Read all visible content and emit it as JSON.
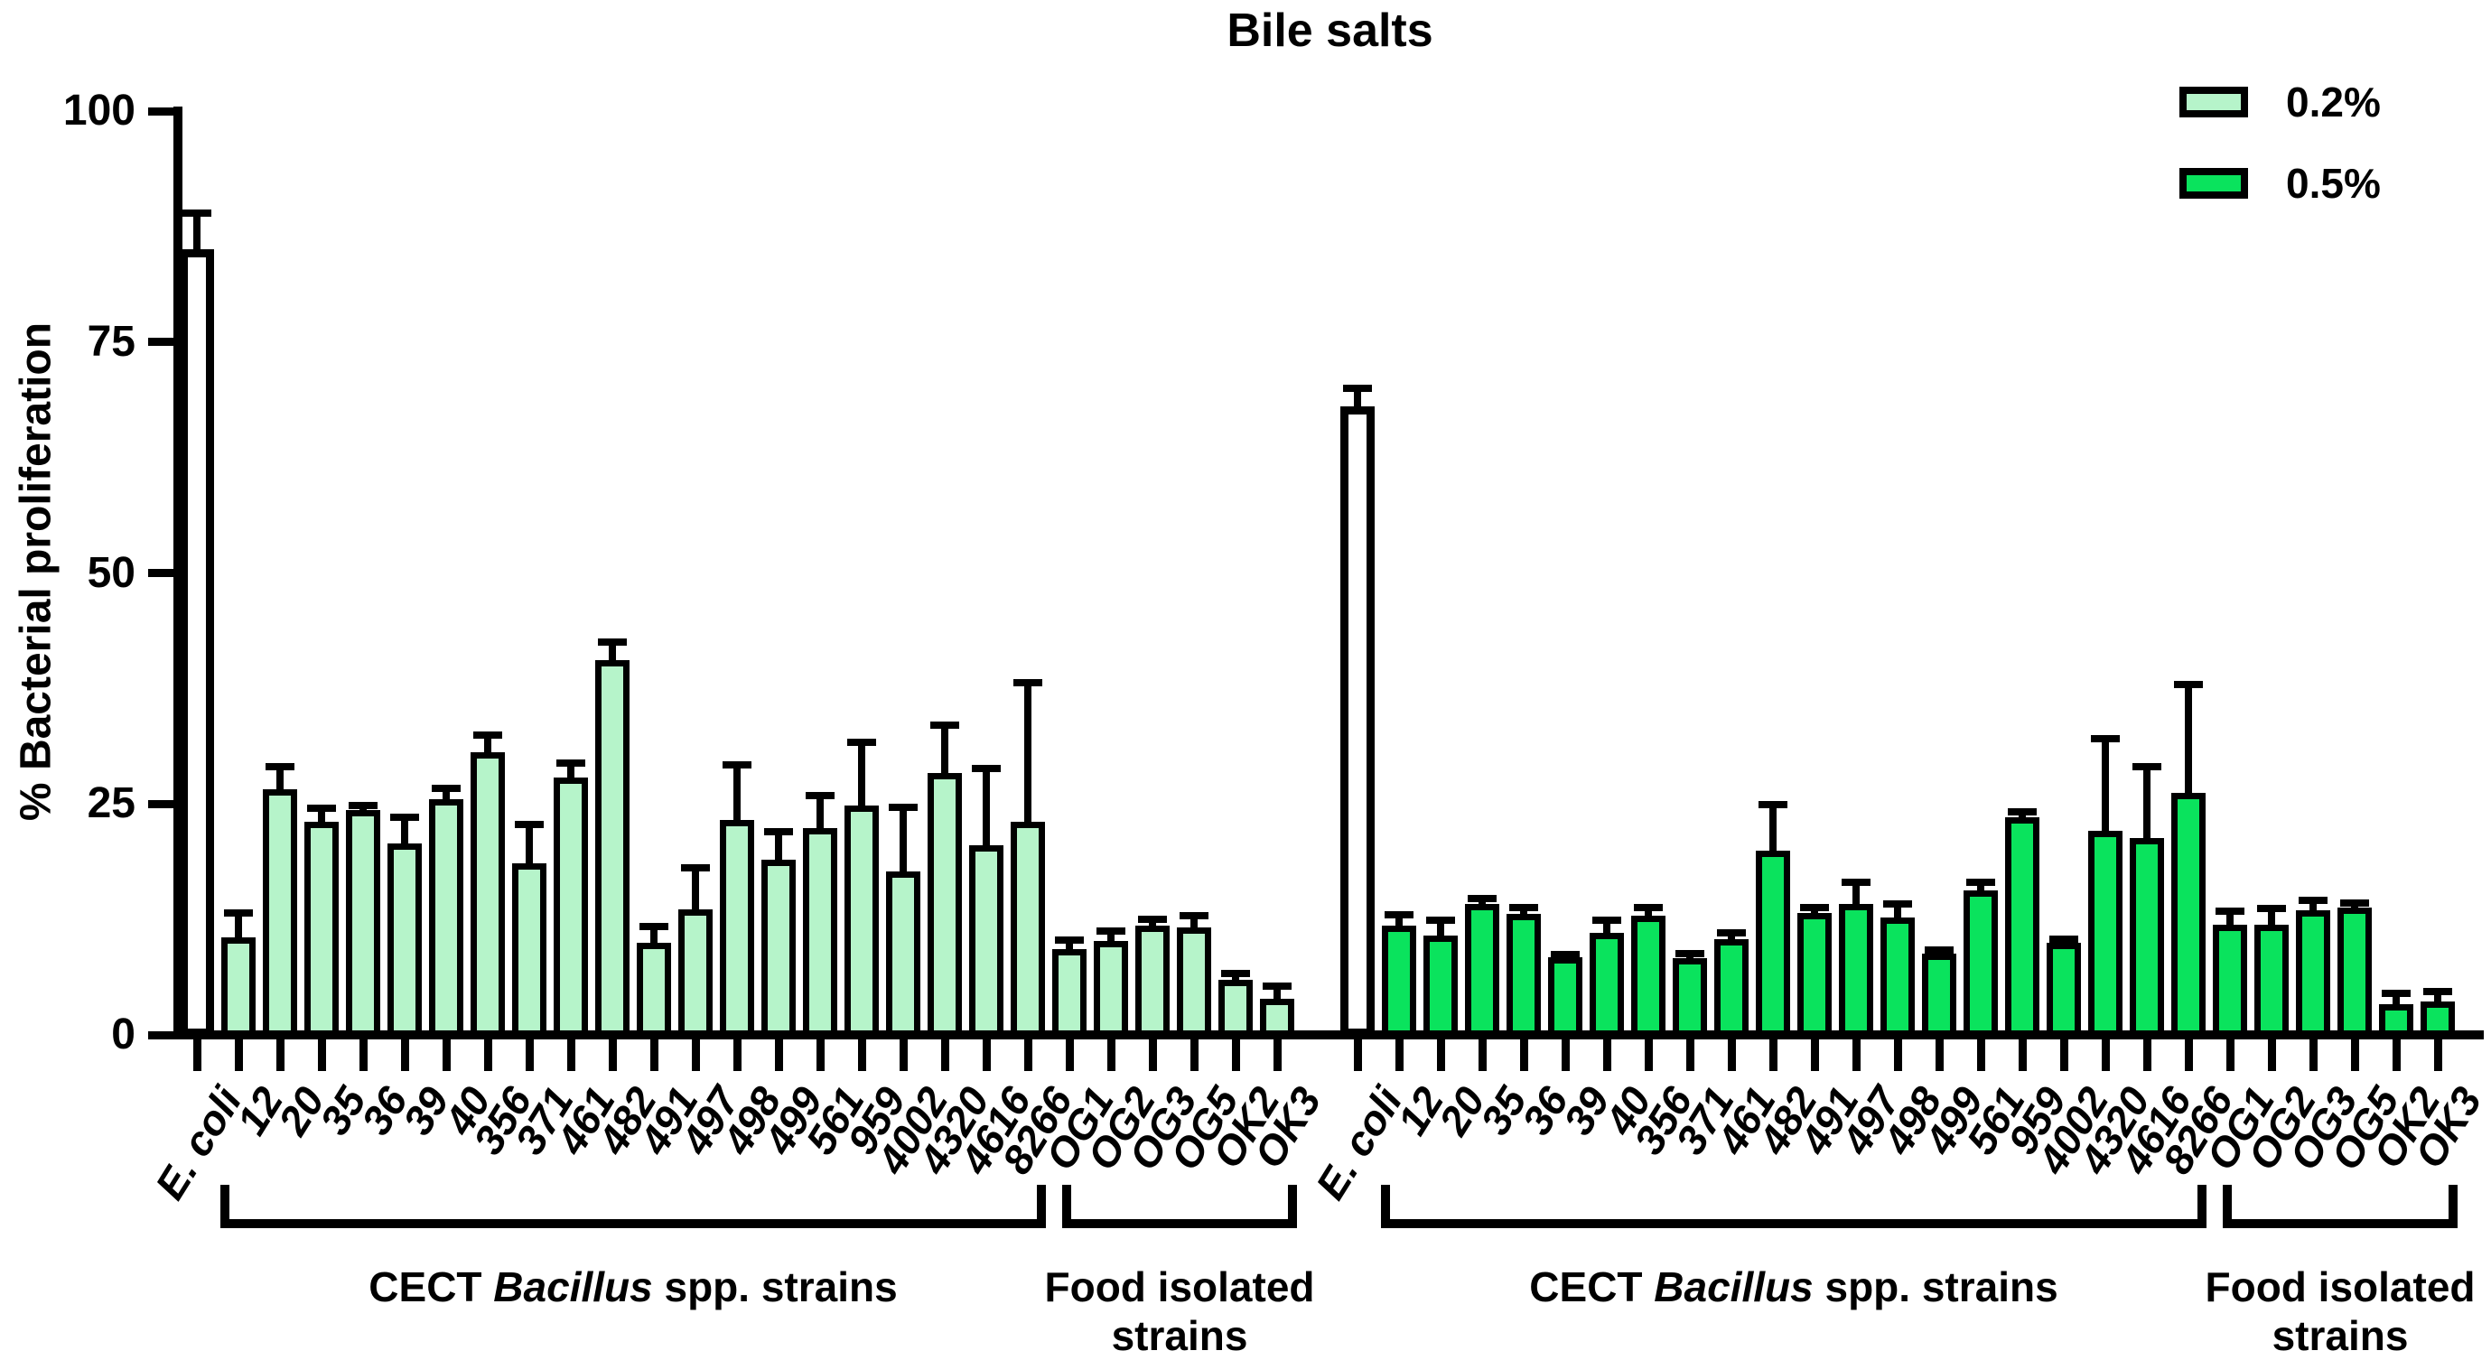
{
  "title": "Bile salts",
  "y_axis": {
    "label": "% Bacterial proliferation",
    "ticks": [
      100,
      75,
      50,
      25,
      0
    ]
  },
  "legend": [
    {
      "label": "0.2%",
      "color": "#b6f4ca"
    },
    {
      "label": "0.5%",
      "color": "#0ae35d"
    }
  ],
  "colors": {
    "light_green": "#b6f4ca",
    "bright_green": "#0ae35d",
    "bar_border": "#000000",
    "ecoli_fill": "#ffffff",
    "axis": "#000000"
  },
  "annotations": {
    "cect_prefix": "CECT ",
    "cect_italic": "Bacillus",
    "cect_suffix": " spp. strains",
    "food_line1": "Food isolated",
    "food_line2": "strains"
  },
  "chart_data": {
    "type": "bar",
    "title": "Bile salts",
    "ylabel": "% Bacterial proliferation",
    "ylim": [
      0,
      100
    ],
    "grid": false,
    "legend_position": "top-right",
    "categories": [
      "E. coli",
      "12",
      "20",
      "35",
      "36",
      "39",
      "40",
      "356",
      "371",
      "461",
      "482",
      "491",
      "497",
      "498",
      "499",
      "561",
      "959",
      "4002",
      "4320",
      "4616",
      "8266",
      "OG1",
      "OG2",
      "OG3",
      "OG5",
      "OK2",
      "OK3"
    ],
    "category_groups": {
      "cect_strains": [
        "12",
        "20",
        "35",
        "36",
        "39",
        "40",
        "356",
        "371",
        "461",
        "482",
        "491",
        "497",
        "498",
        "499",
        "561",
        "959",
        "4002",
        "4320",
        "4616",
        "8266"
      ],
      "food_isolated_strains": [
        "OG1",
        "OG2",
        "OG3",
        "OG5",
        "OK2",
        "OK3"
      ]
    },
    "control_bar_style": "E. coli drawn as white bar with thick black outline in both groups",
    "error_bars": "upper SD whiskers with caps",
    "series": [
      {
        "name": "0.2%",
        "color": "#b6f4ca",
        "values": [
          85.0,
          10.6,
          26.6,
          23.1,
          24.3,
          20.7,
          25.5,
          30.6,
          18.6,
          27.9,
          40.6,
          10.0,
          13.6,
          23.3,
          19.0,
          22.4,
          24.8,
          17.7,
          28.3,
          20.5,
          23.1,
          9.3,
          10.2,
          11.8,
          11.6,
          6.0,
          3.9
        ],
        "errors": [
          4.0,
          2.6,
          2.4,
          1.4,
          0.5,
          2.9,
          1.2,
          1.9,
          4.2,
          1.5,
          1.9,
          1.7,
          4.5,
          5.9,
          3.0,
          3.5,
          6.9,
          6.9,
          5.2,
          8.3,
          15.0,
          1.0,
          1.0,
          0.7,
          1.3,
          0.6,
          1.4
        ]
      },
      {
        "name": "0.5%",
        "color": "#0ae35d",
        "values": [
          68.0,
          11.8,
          10.8,
          14.2,
          13.1,
          8.4,
          11.0,
          12.9,
          8.3,
          10.4,
          19.9,
          13.2,
          14.2,
          12.7,
          8.8,
          15.6,
          23.6,
          10.0,
          22.1,
          21.3,
          26.2,
          11.9,
          11.9,
          13.5,
          13.8,
          3.3,
          3.6
        ],
        "errors": [
          2.0,
          1.2,
          1.6,
          0.6,
          0.7,
          0.3,
          1.4,
          0.9,
          0.5,
          0.6,
          5.0,
          0.6,
          2.3,
          1.5,
          0.4,
          0.9,
          0.5,
          0.4,
          10.0,
          7.7,
          11.7,
          1.5,
          1.8,
          1.1,
          0.5,
          1.2,
          1.1
        ]
      }
    ]
  }
}
